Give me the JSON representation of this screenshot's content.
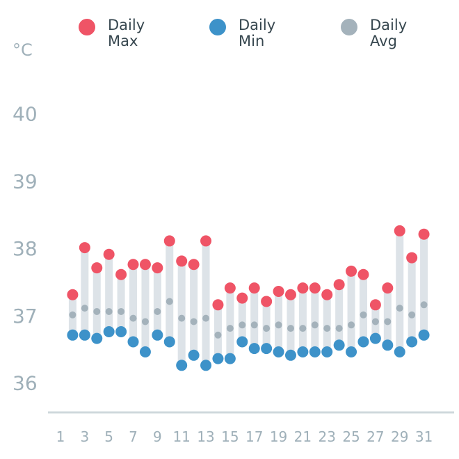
{
  "chart_data": {
    "type": "scatter",
    "unit": "°C",
    "x": [
      2,
      3,
      4,
      5,
      6,
      7,
      8,
      9,
      10,
      11,
      12,
      13,
      14,
      15,
      16,
      17,
      18,
      19,
      20,
      21,
      22,
      23,
      24,
      25,
      26,
      27,
      28,
      29,
      30,
      31
    ],
    "x_ticks": [
      "1",
      "3",
      "5",
      "7",
      "9",
      "11",
      "13",
      "15",
      "17",
      "19",
      "21",
      "23",
      "25",
      "27",
      "29",
      "31"
    ],
    "y_ticks": [
      "36",
      "37",
      "38",
      "39",
      "40"
    ],
    "ylim": [
      35.55,
      40.7
    ],
    "xlim": [
      1,
      32
    ],
    "series": [
      {
        "name": "Daily Max",
        "color": "#ef5466",
        "values": [
          37.3,
          38.0,
          37.7,
          37.9,
          37.6,
          37.75,
          37.75,
          37.7,
          38.1,
          37.8,
          37.75,
          38.1,
          37.15,
          37.4,
          37.25,
          37.4,
          37.2,
          37.35,
          37.3,
          37.4,
          37.4,
          37.3,
          37.45,
          37.65,
          37.6,
          37.15,
          37.4,
          38.25,
          37.85,
          38.2
        ]
      },
      {
        "name": "Daily Min",
        "color": "#3d92c9",
        "values": [
          36.7,
          36.7,
          36.65,
          36.75,
          36.75,
          36.6,
          36.45,
          36.7,
          36.6,
          36.25,
          36.4,
          36.25,
          36.35,
          36.35,
          36.6,
          36.5,
          36.5,
          36.45,
          36.4,
          36.45,
          36.45,
          36.45,
          36.55,
          36.45,
          36.6,
          36.65,
          36.55,
          36.45,
          36.6,
          36.7
        ]
      },
      {
        "name": "Daily Avg",
        "color": "#a4b2bb",
        "values": [
          37.0,
          37.1,
          37.05,
          37.05,
          37.05,
          36.95,
          36.9,
          37.05,
          37.2,
          36.95,
          36.9,
          36.95,
          36.7,
          36.8,
          36.85,
          36.85,
          36.8,
          36.85,
          36.8,
          36.8,
          36.85,
          36.8,
          36.8,
          36.85,
          37.0,
          36.9,
          36.9,
          37.1,
          37.0,
          37.15
        ]
      }
    ],
    "legend": {
      "position": "top",
      "items": [
        {
          "line1": "Daily",
          "line2": "Max",
          "color": "#ef5466"
        },
        {
          "line1": "Daily",
          "line2": "Min",
          "color": "#3d92c9"
        },
        {
          "line1": "Daily",
          "line2": "Avg",
          "color": "#a4b2bb"
        }
      ]
    },
    "range_bar_color": "#dde3e8",
    "axis_color": "#cfd8dc",
    "grid": false
  }
}
